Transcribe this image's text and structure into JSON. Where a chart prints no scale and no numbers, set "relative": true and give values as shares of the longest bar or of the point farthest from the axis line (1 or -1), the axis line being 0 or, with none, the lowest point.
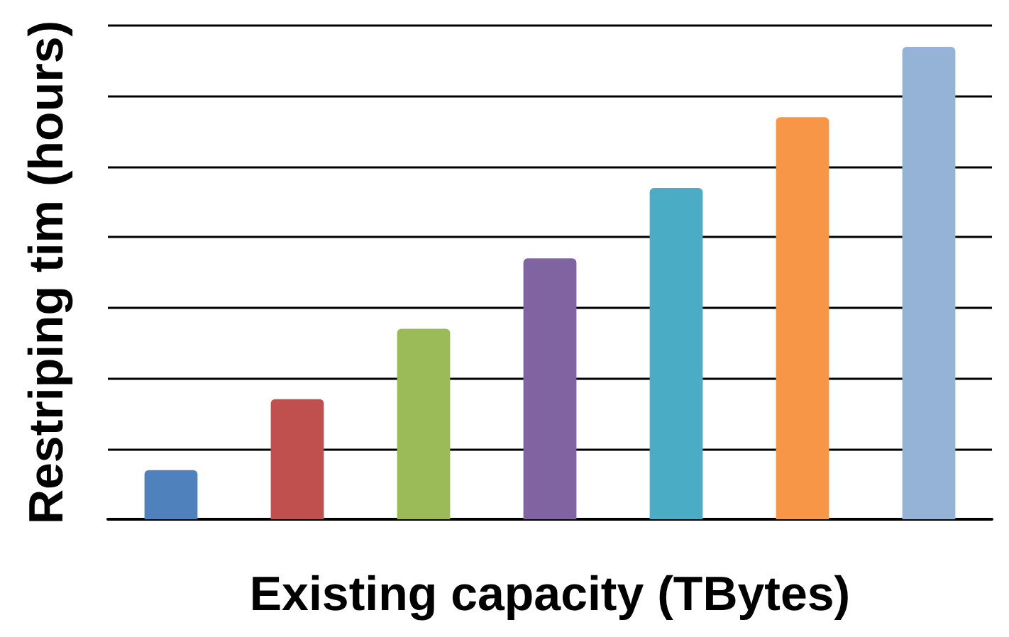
{
  "chart_data": {
    "type": "bar",
    "relative": true,
    "xlabel": "Existing capacity (TBytes)",
    "ylabel": "Restriping tim (hours)",
    "categories": [
      null,
      null,
      null,
      null,
      null,
      null,
      null
    ],
    "values": [
      0.104,
      0.254,
      0.403,
      0.552,
      0.701,
      0.851,
      1
    ],
    "colors": [
      "#4f81bd",
      "#c0504d",
      "#9bbb59",
      "#8064a2",
      "#4bacc6",
      "#f79646",
      "#95b3d7"
    ],
    "grid": true
  }
}
